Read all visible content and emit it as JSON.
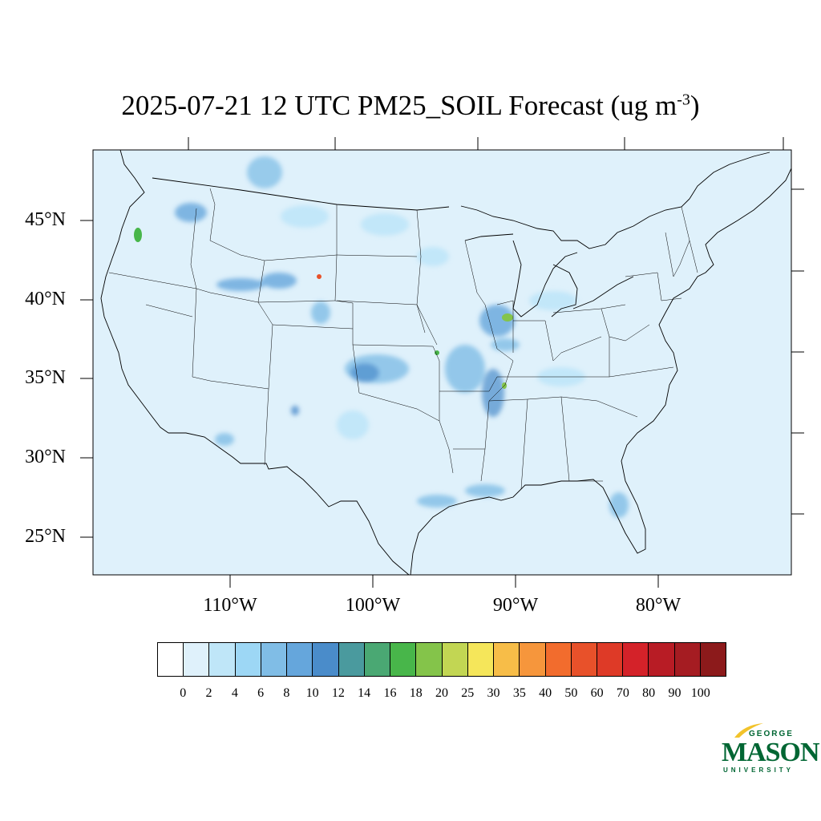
{
  "title": {
    "main": "2025-07-21 12 UTC PM25_SOIL Forecast (ug m",
    "exponent": "-3",
    "close": ")"
  },
  "map": {
    "ocean_color": "#dff1fb",
    "border_color": "#000000",
    "lat_labels": [
      "45°N",
      "40°N",
      "35°N",
      "30°N",
      "25°N"
    ],
    "lon_labels": [
      "110°W",
      "100°W",
      "90°W",
      "80°W"
    ]
  },
  "colorbar": {
    "labels": [
      "0",
      "2",
      "4",
      "6",
      "8",
      "10",
      "12",
      "14",
      "16",
      "18",
      "20",
      "25",
      "30",
      "35",
      "40",
      "50",
      "60",
      "70",
      "80",
      "90",
      "100"
    ],
    "colors": [
      "#ffffff",
      "#dff1fb",
      "#bfe6f8",
      "#9dd7f5",
      "#80bde6",
      "#65a6dc",
      "#4a8cca",
      "#4a9a9e",
      "#4aa873",
      "#48b64a",
      "#84c44a",
      "#c2d653",
      "#f5e65a",
      "#f7bd48",
      "#f6963c",
      "#f26c2d",
      "#e8512a",
      "#de3a27",
      "#d42229",
      "#b81c25",
      "#a51c22",
      "#8c1a1b"
    ]
  },
  "logo": {
    "top": "GEORGE",
    "middle": "MASON",
    "bottom": "UNIVERSITY",
    "color": "#006633",
    "accent": "#f2c32b"
  }
}
